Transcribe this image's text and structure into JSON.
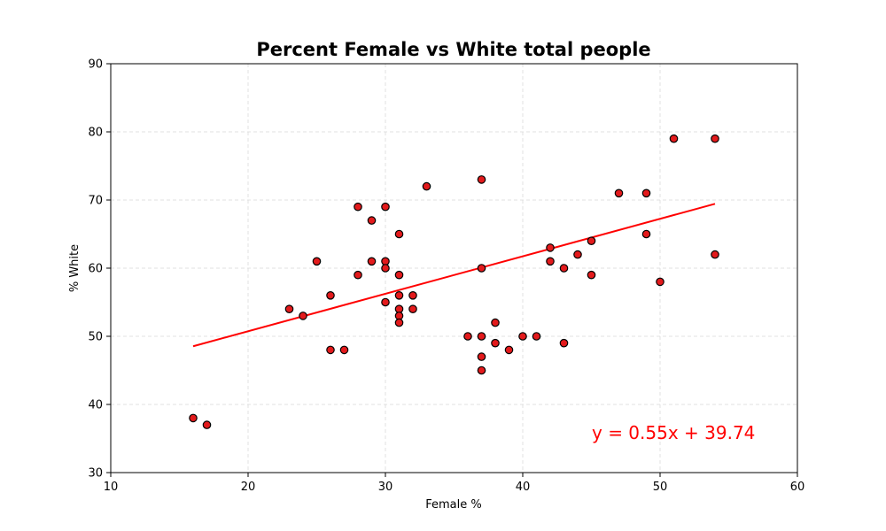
{
  "chart_data": {
    "type": "scatter",
    "title": "Percent Female vs White total people",
    "xlabel": "Female %",
    "ylabel": "% White",
    "xlim": [
      10,
      60
    ],
    "ylim": [
      30,
      90
    ],
    "xticks": [
      "10",
      "20",
      "30",
      "40",
      "50",
      "60"
    ],
    "yticks": [
      "30",
      "40",
      "50",
      "60",
      "70",
      "80",
      "90"
    ],
    "grid": true,
    "points": [
      {
        "x": 16,
        "y": 38
      },
      {
        "x": 17,
        "y": 37
      },
      {
        "x": 23,
        "y": 54
      },
      {
        "x": 24,
        "y": 53
      },
      {
        "x": 25,
        "y": 61
      },
      {
        "x": 26,
        "y": 56
      },
      {
        "x": 26,
        "y": 48
      },
      {
        "x": 27,
        "y": 48
      },
      {
        "x": 28,
        "y": 69
      },
      {
        "x": 28,
        "y": 59
      },
      {
        "x": 29,
        "y": 67
      },
      {
        "x": 29,
        "y": 61
      },
      {
        "x": 30,
        "y": 69
      },
      {
        "x": 30,
        "y": 61
      },
      {
        "x": 30,
        "y": 60
      },
      {
        "x": 30,
        "y": 55
      },
      {
        "x": 31,
        "y": 65
      },
      {
        "x": 31,
        "y": 59
      },
      {
        "x": 31,
        "y": 56
      },
      {
        "x": 31,
        "y": 54
      },
      {
        "x": 31,
        "y": 53
      },
      {
        "x": 31,
        "y": 52
      },
      {
        "x": 32,
        "y": 56
      },
      {
        "x": 32,
        "y": 54
      },
      {
        "x": 33,
        "y": 72
      },
      {
        "x": 36,
        "y": 50
      },
      {
        "x": 37,
        "y": 73
      },
      {
        "x": 37,
        "y": 60
      },
      {
        "x": 37,
        "y": 50
      },
      {
        "x": 37,
        "y": 47
      },
      {
        "x": 37,
        "y": 45
      },
      {
        "x": 38,
        "y": 52
      },
      {
        "x": 38,
        "y": 49
      },
      {
        "x": 39,
        "y": 48
      },
      {
        "x": 40,
        "y": 50
      },
      {
        "x": 41,
        "y": 50
      },
      {
        "x": 42,
        "y": 63
      },
      {
        "x": 42,
        "y": 61
      },
      {
        "x": 43,
        "y": 60
      },
      {
        "x": 43,
        "y": 49
      },
      {
        "x": 44,
        "y": 62
      },
      {
        "x": 45,
        "y": 64
      },
      {
        "x": 45,
        "y": 59
      },
      {
        "x": 47,
        "y": 71
      },
      {
        "x": 49,
        "y": 71
      },
      {
        "x": 49,
        "y": 65
      },
      {
        "x": 50,
        "y": 58
      },
      {
        "x": 51,
        "y": 79
      },
      {
        "x": 54,
        "y": 79
      },
      {
        "x": 54,
        "y": 62
      }
    ],
    "regression": {
      "slope": 0.55,
      "intercept": 39.74,
      "x_range": [
        16,
        54
      ],
      "equation": "y = 0.55x + 39.74",
      "color": "#ff0000"
    },
    "colors": {
      "marker_fill": "#e31a1c",
      "marker_edge": "#000000",
      "grid": "#d9d9d9"
    }
  }
}
